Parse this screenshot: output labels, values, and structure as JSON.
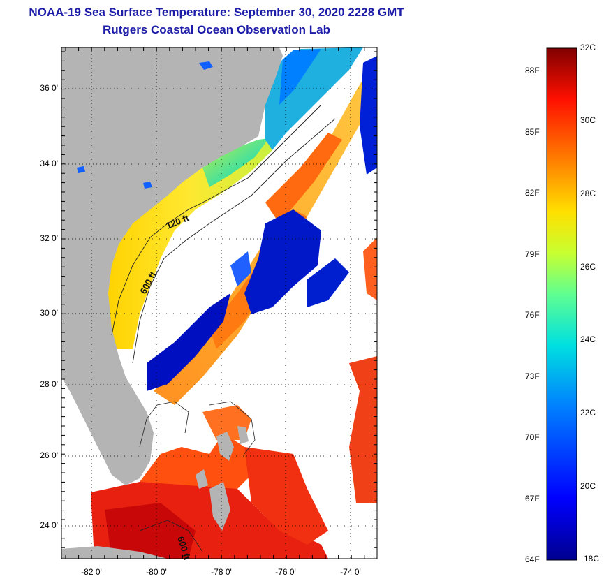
{
  "header": {
    "title": "NOAA-19 Sea Surface Temperature:  September 30, 2020 2228 GMT",
    "subtitle": "Rutgers Coastal Ocean Observation Lab"
  },
  "map": {
    "lat_ticks": [
      "36 0'",
      "34 0'",
      "32 0'",
      "30 0'",
      "28 0'",
      "26 0'",
      "24 0'"
    ],
    "lon_ticks": [
      "-82 0'",
      "-80 0'",
      "-78 0'",
      "-76 0'",
      "-74 0'"
    ],
    "contour_labels": [
      "120 ft",
      "600 ft",
      "600 ft"
    ],
    "colors": {
      "land": "#b4b4b4",
      "cloud": "#ffffff",
      "gridline": "#000000"
    }
  },
  "colorbar": {
    "celsius_labels": [
      "32C",
      "30C",
      "28C",
      "26C",
      "24C",
      "22C",
      "20C",
      "18C"
    ],
    "fahrenheit_labels": [
      "88F",
      "85F",
      "82F",
      "79F",
      "76F",
      "73F",
      "70F",
      "67F",
      "64F"
    ],
    "range_c": [
      18,
      32
    ]
  }
}
